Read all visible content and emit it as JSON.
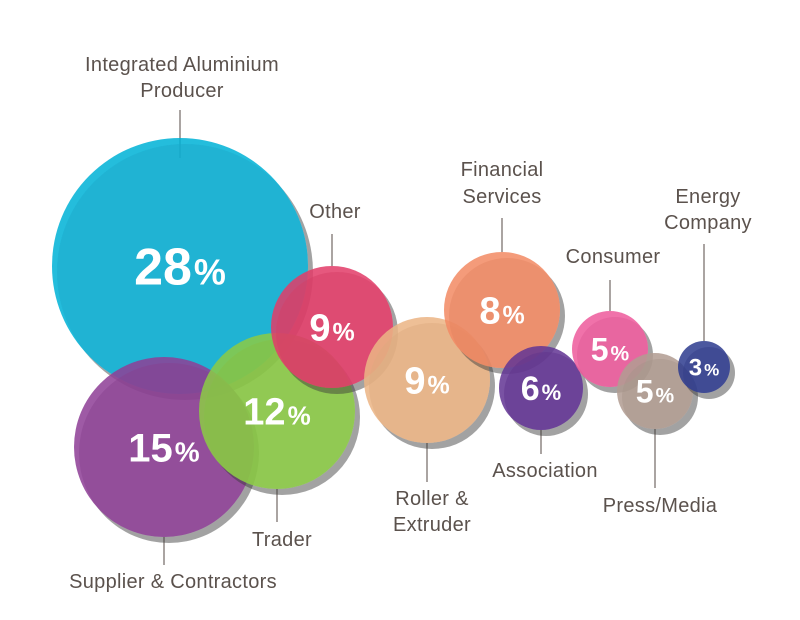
{
  "chart_data": {
    "type": "bubble",
    "title": "",
    "unit": "%",
    "categories": [
      "Integrated Aluminium Producer",
      "Supplier & Contractors",
      "Trader",
      "Other",
      "Roller & Extruder",
      "Financial Services",
      "Association",
      "Consumer",
      "Press/Media",
      "Energy Company"
    ],
    "values": [
      28,
      15,
      12,
      9,
      9,
      8,
      6,
      5,
      5,
      3
    ],
    "bubbles": [
      {
        "name": "Integrated Aluminium Producer",
        "label_lines": [
          "Integrated Aluminium",
          "Producer"
        ],
        "value": 28,
        "value_text": "28",
        "color": "#00b2d6"
      },
      {
        "name": "Supplier & Contractors",
        "label_lines": [
          "Supplier & Contractors"
        ],
        "value": 15,
        "value_text": "15",
        "color": "#8e3f96"
      },
      {
        "name": "Trader",
        "label_lines": [
          "Trader"
        ],
        "value": 12,
        "value_text": "12",
        "color": "#8ccb46"
      },
      {
        "name": "Other",
        "label_lines": [
          "Other"
        ],
        "value": 9,
        "value_text": "9",
        "color": "#e23c69"
      },
      {
        "name": "Roller & Extruder",
        "label_lines": [
          "Roller &",
          "Extruder"
        ],
        "value": 9,
        "value_text": "9",
        "color": "#ebb485"
      },
      {
        "name": "Financial Services",
        "label_lines": [
          "Financial",
          "Services"
        ],
        "value": 8,
        "value_text": "8",
        "color": "#f28a64"
      },
      {
        "name": "Association",
        "label_lines": [
          "Association"
        ],
        "value": 6,
        "value_text": "6",
        "color": "#633494"
      },
      {
        "name": "Consumer",
        "label_lines": [
          "Consumer"
        ],
        "value": 5,
        "value_text": "5",
        "color": "#ee5b9c"
      },
      {
        "name": "Press/Media",
        "label_lines": [
          "Press/Media"
        ],
        "value": 5,
        "value_text": "5",
        "color": "#b19c92"
      },
      {
        "name": "Energy Company",
        "label_lines": [
          "Energy",
          "Company"
        ],
        "value": 3,
        "value_text": "3",
        "color": "#2f3c8f"
      }
    ]
  }
}
